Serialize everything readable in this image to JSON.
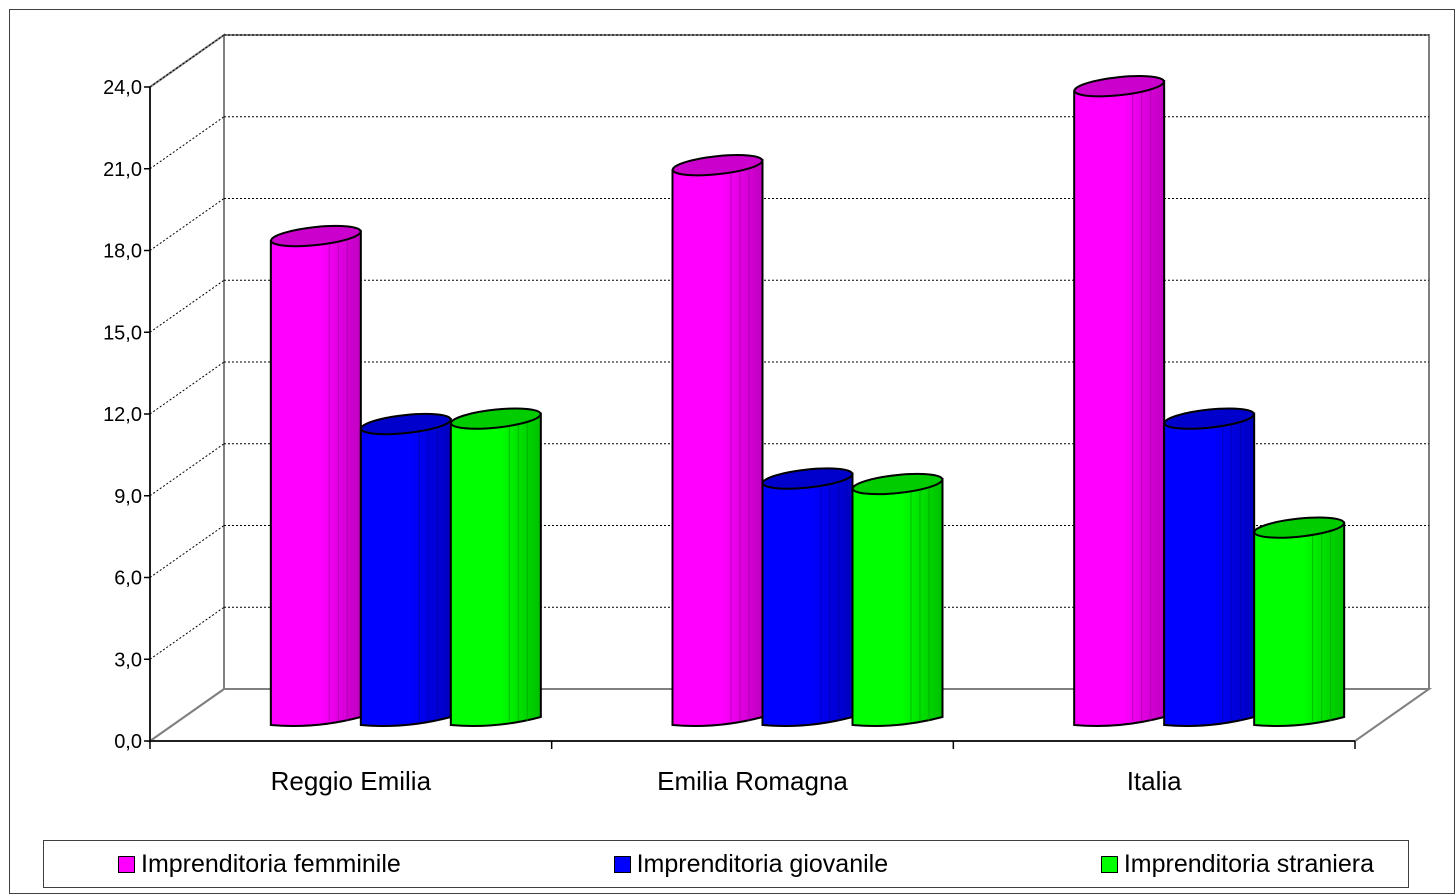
{
  "chart_data": {
    "type": "bar",
    "title": "",
    "xlabel": "",
    "ylabel": "",
    "categories": [
      "Reggio Emilia",
      "Emilia Romagna",
      "Italia"
    ],
    "series": [
      {
        "name": "Imprenditoria femminile",
        "color": "#ff00ff",
        "values": [
          18.2,
          20.8,
          23.7
        ]
      },
      {
        "name": "Imprenditoria giovanile",
        "color": "#0000ff",
        "values": [
          11.3,
          9.3,
          11.5
        ]
      },
      {
        "name": "Imprenditoria straniera",
        "color": "#00ff00",
        "values": [
          11.5,
          9.1,
          7.5
        ]
      }
    ],
    "ylim": [
      0,
      24
    ],
    "yticks": [
      "0,0",
      "3,0",
      "6,0",
      "9,0",
      "12,0",
      "15,0",
      "18,0",
      "21,0",
      "24,0"
    ],
    "grid": true,
    "legend_position": "bottom"
  }
}
